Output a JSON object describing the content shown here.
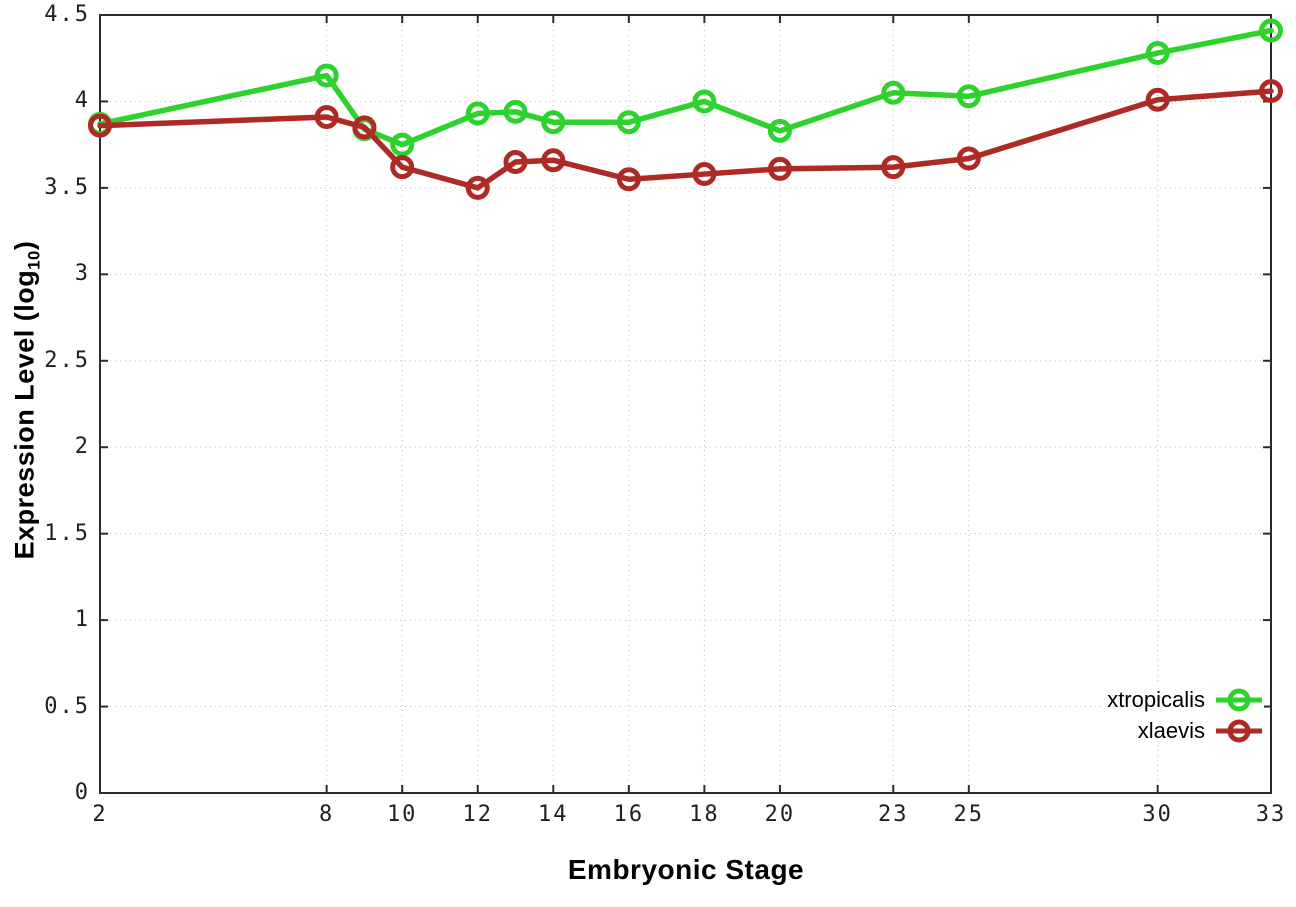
{
  "chart_data": {
    "type": "line",
    "title": "",
    "xlabel": "Embryonic Stage",
    "ylabel": "Expression Level (log10)",
    "ylabel_parts": {
      "prefix": "Expression Level (log",
      "subscript": "10",
      "suffix": ")"
    },
    "xlim": [
      2,
      33
    ],
    "ylim": [
      0,
      4.5
    ],
    "x_ticks": [
      2,
      8,
      10,
      12,
      14,
      16,
      18,
      20,
      23,
      25,
      30,
      33
    ],
    "y_ticks": [
      0,
      0.5,
      1,
      1.5,
      2,
      2.5,
      3,
      3.5,
      4,
      4.5
    ],
    "grid": true,
    "legend_position": "bottom-right",
    "x": [
      2,
      8,
      9,
      10,
      12,
      13,
      14,
      16,
      18,
      20,
      23,
      25,
      30,
      33
    ],
    "series": [
      {
        "name": "xtropicalis",
        "color": "#2dd22d",
        "values": [
          3.87,
          4.15,
          3.84,
          3.75,
          3.93,
          3.94,
          3.88,
          3.88,
          4.0,
          3.83,
          4.05,
          4.03,
          4.28,
          4.41
        ]
      },
      {
        "name": "xlaevis",
        "color": "#ae2a24",
        "values": [
          3.86,
          3.91,
          3.85,
          3.62,
          3.5,
          3.65,
          3.66,
          3.55,
          3.58,
          3.61,
          3.62,
          3.67,
          4.01,
          4.06
        ]
      }
    ]
  },
  "colors": {
    "grid": "#bdbdbd",
    "axis": "#2b2b2b",
    "tick_text": "#1f1f1f"
  }
}
